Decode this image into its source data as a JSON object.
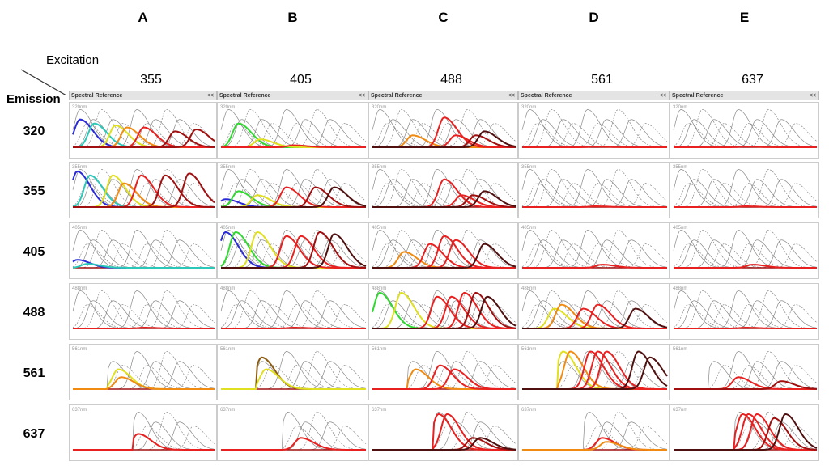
{
  "columns": [
    "A",
    "B",
    "C",
    "D",
    "E"
  ],
  "excitation_label": "Excitation",
  "emission_label": "Emission",
  "excitations": [
    "355",
    "405",
    "488",
    "561",
    "637"
  ],
  "emissions": [
    "320",
    "355",
    "405",
    "488",
    "561",
    "637"
  ],
  "panel_labels": [
    "320nm",
    "355nm",
    "405nm",
    "488nm",
    "561nm",
    "637nm"
  ],
  "header": {
    "title": "Spectral Reference",
    "collapse": "<<"
  },
  "colors": {
    "blue": "#2a2ad8",
    "cyan": "#2ac8b8",
    "green": "#30d830",
    "yellow": "#e0e020",
    "orange": "#f08a10",
    "red": "#e82020",
    "darkred": "#a01010",
    "maroon": "#501010",
    "brown": "#8a5a10",
    "gray": "#888888"
  },
  "chart_data": {
    "type": "line",
    "title": "",
    "description_units": "spectral channel (0-100), normalized intensity (0-1)",
    "gray_reference_peaks": [
      5,
      10,
      14,
      20,
      28,
      35,
      45,
      52,
      58,
      66,
      75,
      85
    ],
    "row_emission_start": [
      0,
      0,
      0,
      0,
      25,
      43
    ],
    "panels": [
      [
        [
          [
            "blue",
            5,
            0.7
          ],
          [
            "cyan",
            15,
            0.6
          ],
          [
            "yellow",
            30,
            0.55
          ],
          [
            "orange",
            38,
            0.5
          ],
          [
            "red",
            50,
            0.5
          ],
          [
            "darkred",
            72,
            0.4
          ],
          [
            "darkred",
            87,
            0.45
          ]
        ],
        [
          [
            "green",
            12,
            0.6
          ],
          [
            "yellow",
            27,
            0.2
          ],
          [
            "red",
            50,
            0.05
          ]
        ],
        [
          [
            "orange",
            28,
            0.3
          ],
          [
            "red",
            50,
            0.75
          ],
          [
            "red",
            58,
            0.3
          ],
          [
            "darkred",
            72,
            0.3
          ],
          [
            "maroon",
            78,
            0.4
          ]
        ],
        [
          [
            "red",
            50,
            0.02
          ]
        ],
        [
          [
            "red",
            50,
            0.02
          ]
        ]
      ],
      [
        [
          [
            "blue",
            3,
            0.9
          ],
          [
            "cyan",
            12,
            0.8
          ],
          [
            "yellow",
            28,
            0.8
          ],
          [
            "orange",
            36,
            0.6
          ],
          [
            "red",
            48,
            0.8
          ],
          [
            "darkred",
            65,
            0.8
          ],
          [
            "darkred",
            82,
            0.85
          ]
        ],
        [
          [
            "blue",
            3,
            0.2
          ],
          [
            "green",
            12,
            0.4
          ],
          [
            "yellow",
            25,
            0.3
          ],
          [
            "red",
            45,
            0.5
          ],
          [
            "darkred",
            65,
            0.5
          ],
          [
            "maroon",
            78,
            0.5
          ]
        ],
        [
          [
            "red",
            50,
            0.7
          ],
          [
            "red",
            62,
            0.3
          ],
          [
            "darkred",
            70,
            0.3
          ],
          [
            "maroon",
            78,
            0.4
          ]
        ],
        [
          [
            "red",
            50,
            0.02
          ]
        ],
        [
          [
            "red",
            50,
            0.02
          ]
        ]
      ],
      [
        [
          [
            "blue",
            3,
            0.2
          ],
          [
            "cyan",
            10,
            0.1
          ]
        ],
        [
          [
            "blue",
            3,
            0.9
          ],
          [
            "green",
            10,
            0.9
          ],
          [
            "yellow",
            25,
            0.9
          ],
          [
            "red",
            45,
            0.8
          ],
          [
            "red",
            55,
            0.8
          ],
          [
            "darkred",
            68,
            0.9
          ],
          [
            "maroon",
            78,
            0.85
          ]
        ],
        [
          [
            "orange",
            22,
            0.4
          ],
          [
            "red",
            40,
            0.6
          ],
          [
            "red",
            50,
            0.8
          ],
          [
            "red",
            58,
            0.7
          ],
          [
            "maroon",
            78,
            0.6
          ]
        ],
        [
          [
            "red",
            55,
            0.08
          ]
        ],
        [
          [
            "red",
            55,
            0.08
          ]
        ]
      ],
      [
        [
          [
            "red",
            50,
            0.02
          ]
        ],
        [
          [
            "red",
            50,
            0.02
          ]
        ],
        [
          [
            "green",
            5,
            0.9
          ],
          [
            "yellow",
            20,
            0.9
          ],
          [
            "red",
            45,
            0.8
          ],
          [
            "red",
            55,
            0.8
          ],
          [
            "red",
            64,
            0.9
          ],
          [
            "darkred",
            72,
            0.9
          ],
          [
            "maroon",
            80,
            0.8
          ]
        ],
        [
          [
            "yellow",
            22,
            0.5
          ],
          [
            "orange",
            27,
            0.6
          ],
          [
            "red",
            42,
            0.5
          ],
          [
            "red",
            52,
            0.6
          ],
          [
            "maroon",
            78,
            0.5
          ]
        ],
        [
          [
            "red",
            50,
            0.02
          ]
        ]
      ],
      [
        [
          [
            "yellow",
            32,
            0.5
          ],
          [
            "orange",
            34,
            0.3
          ]
        ],
        [
          [
            "brown",
            28,
            0.8
          ],
          [
            "yellow",
            31,
            0.5
          ]
        ],
        [
          [
            "orange",
            30,
            0.5
          ],
          [
            "red",
            47,
            0.6
          ],
          [
            "red",
            57,
            0.5
          ]
        ],
        [
          [
            "yellow",
            25,
            0.95
          ],
          [
            "orange",
            33,
            0.95
          ],
          [
            "red",
            47,
            0.95
          ],
          [
            "red",
            52,
            0.95
          ],
          [
            "red",
            58,
            0.95
          ],
          [
            "maroon",
            80,
            0.95
          ],
          [
            "maroon",
            88,
            0.8
          ]
        ],
        [
          [
            "red",
            45,
            0.3
          ],
          [
            "darkred",
            75,
            0.2
          ]
        ]
      ],
      [
        [
          [
            "red",
            45,
            0.4
          ]
        ],
        [
          [
            "red",
            55,
            0.3
          ]
        ],
        [
          [
            "red",
            45,
            0.9
          ],
          [
            "red",
            52,
            0.9
          ],
          [
            "darkred",
            70,
            0.3
          ],
          [
            "maroon",
            75,
            0.3
          ]
        ],
        [
          [
            "red",
            55,
            0.3
          ],
          [
            "orange",
            58,
            0.2
          ]
        ],
        [
          [
            "red",
            48,
            0.9
          ],
          [
            "red",
            52,
            0.9
          ],
          [
            "red",
            58,
            0.9
          ],
          [
            "darkred",
            70,
            0.8
          ],
          [
            "maroon",
            78,
            0.9
          ]
        ]
      ]
    ]
  }
}
